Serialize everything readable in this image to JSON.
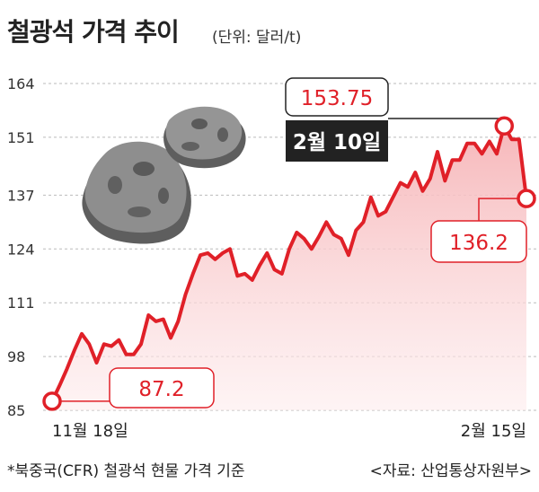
{
  "header": {
    "title": "철광석 가격 추이",
    "unit": "(단위: 달러/t)"
  },
  "footer": {
    "note": "*북중국(CFR) 철광석 현물 가격 기준",
    "source": "<자료: 산업통상자원부>"
  },
  "colors": {
    "line": "#e02028",
    "fill_top": "#f6b3b6",
    "grid": "#bbbbbb",
    "date_box": "#222222",
    "rock": "#8c8c8c"
  },
  "chart_data": {
    "type": "area",
    "title": "철광석 가격 추이",
    "ylabel": "",
    "xlabel": "",
    "ylim": [
      85,
      164
    ],
    "yticks": [
      164,
      151,
      137,
      124,
      111,
      98,
      85
    ],
    "x_labels": [
      "11월 18일",
      "2월 15일"
    ],
    "grid": "horizontal dashed",
    "series": [
      {
        "values": [
          87.2,
          91,
          95,
          99.5,
          103.5,
          101,
          96.5,
          101,
          100.5,
          102,
          98.5,
          98.5,
          101,
          108,
          106.5,
          107,
          102.5,
          106.5,
          113,
          118,
          122.5,
          123,
          121.5,
          123,
          124,
          117.5,
          118,
          116.5,
          120,
          123,
          119,
          118,
          124,
          128,
          126.5,
          124,
          127,
          130.5,
          127.5,
          126.5,
          122.5,
          128.5,
          130.5,
          136.5,
          132,
          133,
          136.5,
          140,
          139,
          142.5,
          138,
          141,
          147.5,
          140.5,
          145.5,
          145.5,
          149.5,
          149.5,
          147,
          150,
          147,
          153.75,
          150.5,
          150.5,
          136.2
        ]
      }
    ],
    "annotations": [
      {
        "label": "87.2",
        "value": 87.2,
        "point": "start"
      },
      {
        "label": "153.75",
        "value": 153.75,
        "date": "2월 10일",
        "point": "peak"
      },
      {
        "label": "136.2",
        "value": 136.2,
        "point": "end"
      }
    ]
  }
}
